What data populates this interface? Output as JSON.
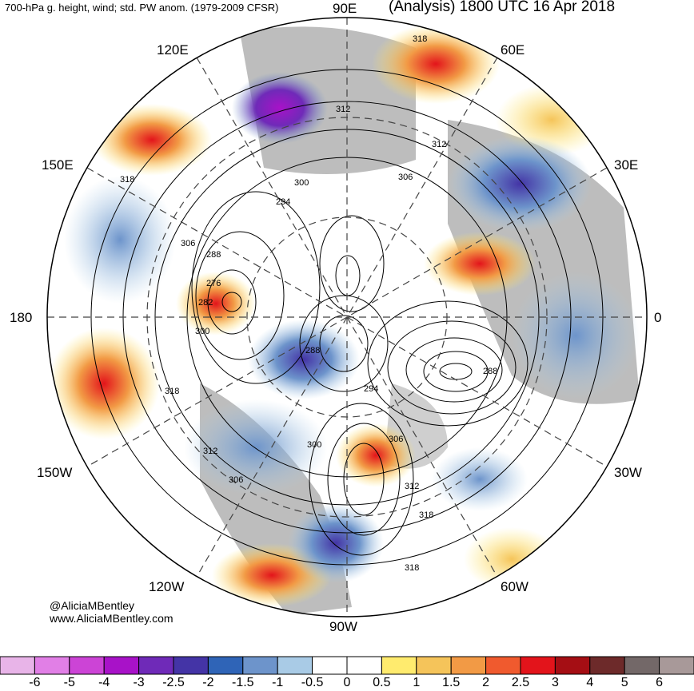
{
  "header": {
    "left_title": "700-hPa g. height, wind; std. PW anom. (1979-2009 CFSR)",
    "right_title": "(Analysis) 1800 UTC 16 Apr 2018"
  },
  "credits": {
    "handle": "@AliciaMBentley",
    "website": "www.AliciaMBentley.com"
  },
  "longitude_labels": {
    "lon_90e": "90E",
    "lon_60e": "60E",
    "lon_120e": "120E",
    "lon_30e": "30E",
    "lon_150e": "150E",
    "lon_180": "180",
    "lon_0": "0",
    "lon_150w": "150W",
    "lon_30w": "30W",
    "lon_120w": "120W",
    "lon_60w": "60W",
    "lon_90w": "90W"
  },
  "contour_labels": [
    "318",
    "312",
    "312",
    "306",
    "300",
    "294",
    "318",
    "306",
    "288",
    "276",
    "282",
    "300",
    "288",
    "288",
    "294",
    "318",
    "312",
    "306",
    "300",
    "306",
    "312",
    "318",
    "318"
  ],
  "colorbar": {
    "ticks": [
      "-6",
      "-5",
      "-4",
      "-3",
      "-2.5",
      "-2",
      "-1.5",
      "-1",
      "-0.5",
      "0",
      "0.5",
      "1",
      "1.5",
      "2",
      "2.5",
      "3",
      "4",
      "5",
      "6"
    ],
    "colors": [
      "#e8b4e8",
      "#e17fe6",
      "#cc44d6",
      "#a812c8",
      "#6f2ab8",
      "#4434a6",
      "#2f64b7",
      "#6d94cb",
      "#a9cbe6",
      "#ffffff",
      "#ffffff",
      "#ffeb6e",
      "#f5c45a",
      "#f29a45",
      "#f05a2e",
      "#e3141b",
      "#a50e14",
      "#6d2a2a",
      "#736868",
      "#a89999"
    ]
  }
}
